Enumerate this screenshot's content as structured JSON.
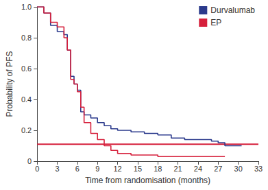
{
  "chart_data": {
    "type": "line",
    "x_label": "Time from randomisation (months)",
    "y_label": "Probability of PFS",
    "xlim": [
      0,
      33
    ],
    "xticks": [
      0,
      3,
      6,
      9,
      12,
      15,
      18,
      21,
      24,
      27,
      30,
      33
    ],
    "ylim": [
      0,
      1
    ],
    "yticks": [
      0,
      {
        "value": 0.2,
        "label": "0.2"
      },
      {
        "value": 0.4,
        "label": "0.4"
      },
      {
        "value": 0.6,
        "label": "0.6"
      },
      {
        "value": 0.8,
        "label": "0.8"
      },
      {
        "value": 1,
        "label": "1.0"
      }
    ],
    "grid": false,
    "legend": "upper right",
    "series": [
      {
        "name": "Durvalumab",
        "color": "#2b3a8c",
        "line_style": "step",
        "x": [
          0,
          1,
          2,
          3,
          4,
          4.5,
          5,
          5.5,
          6,
          6.5,
          7,
          8,
          9,
          10,
          11,
          12,
          14,
          16,
          18,
          20,
          22,
          24,
          26,
          27,
          28,
          30,
          30.5
        ],
        "values": [
          1,
          0.96,
          0.88,
          0.84,
          0.82,
          0.72,
          0.55,
          0.5,
          0.46,
          0.32,
          0.3,
          0.28,
          0.25,
          0.23,
          0.21,
          0.2,
          0.19,
          0.18,
          0.17,
          0.15,
          0.14,
          0.14,
          0.13,
          0.12,
          0.1,
          0.1,
          0.1
        ]
      },
      {
        "name": "EP",
        "color": "#d6203c",
        "line_style": "step",
        "x": [
          0,
          1,
          2,
          3,
          4,
          4.5,
          5,
          5.5,
          6,
          6.5,
          7,
          8,
          9,
          10,
          11,
          12,
          14,
          16,
          18,
          20,
          24,
          28
        ],
        "values": [
          1,
          0.96,
          0.9,
          0.87,
          0.8,
          0.72,
          0.53,
          0.5,
          0.45,
          0.35,
          0.25,
          0.18,
          0.14,
          0.1,
          0.07,
          0.05,
          0.04,
          0.04,
          0.03,
          0.03,
          0.03,
          0.03
        ]
      },
      {
        "color": "#d6203c",
        "line_style": "solid",
        "x": [
          0,
          33
        ],
        "values": [
          0.11,
          0.11
        ]
      }
    ]
  }
}
